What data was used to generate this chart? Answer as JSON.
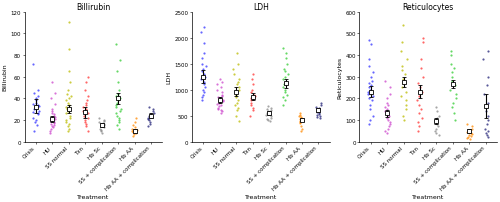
{
  "panels": [
    {
      "title": "Billirubin",
      "ylabel": "Billirubin",
      "xlabel": "Treatment",
      "ylim": [
        0,
        120
      ],
      "yticks": [
        0,
        20,
        40,
        60,
        80,
        100,
        120
      ],
      "groups": [
        {
          "label": "Crisis",
          "color": "#3333ff",
          "mean": 32,
          "err_low": 6,
          "err_high": 7,
          "points": [
            10,
            15,
            18,
            20,
            22,
            25,
            26,
            27,
            28,
            30,
            31,
            32,
            33,
            34,
            35,
            36,
            38,
            40,
            42,
            45,
            48,
            72
          ]
        },
        {
          "label": "HU",
          "color": "#cc44cc",
          "mean": 21,
          "err_low": 3,
          "err_high": 3,
          "points": [
            8,
            10,
            12,
            13,
            14,
            15,
            16,
            17,
            18,
            19,
            20,
            21,
            22,
            23,
            24,
            25,
            26,
            28,
            30,
            35,
            40,
            45,
            55
          ]
        },
        {
          "label": "SS normal",
          "color": "#bbbb00",
          "mean": 30,
          "err_low": 4,
          "err_high": 4,
          "points": [
            10,
            12,
            14,
            16,
            18,
            20,
            22,
            24,
            26,
            28,
            30,
            32,
            34,
            36,
            38,
            40,
            42,
            44,
            48,
            55,
            65,
            85,
            110
          ]
        },
        {
          "label": "Txn",
          "color": "#ff3333",
          "mean": 27,
          "err_low": 5,
          "err_high": 5,
          "points": [
            10,
            14,
            16,
            18,
            20,
            22,
            24,
            26,
            28,
            30,
            32,
            34,
            36,
            38,
            42,
            48,
            55,
            60
          ]
        },
        {
          "label": "Hb Sc",
          "color": "#888888",
          "mean": 15,
          "err_low": 2,
          "err_high": 2,
          "points": [
            8,
            10,
            11,
            12,
            13,
            14,
            15,
            16,
            17,
            18,
            19,
            20,
            22
          ]
        },
        {
          "label": "SS + complication",
          "color": "#33cc33",
          "mean": 40,
          "err_low": 5,
          "err_high": 5,
          "points": [
            12,
            15,
            18,
            20,
            22,
            24,
            26,
            28,
            30,
            32,
            34,
            36,
            38,
            40,
            42,
            44,
            48,
            55,
            65,
            75,
            90
          ]
        },
        {
          "label": "Hb AA",
          "color": "#ff8800",
          "mean": 10,
          "err_low": 2,
          "err_high": 2,
          "points": [
            5,
            7,
            8,
            9,
            10,
            11,
            12,
            13,
            15,
            18,
            22
          ]
        },
        {
          "label": "Hb AA + complication",
          "color": "#222277",
          "mean": 24,
          "err_low": 2,
          "err_high": 2,
          "points": [
            14,
            16,
            18,
            20,
            21,
            22,
            23,
            24,
            25,
            26,
            28,
            30,
            32
          ]
        }
      ]
    },
    {
      "title": "LDH",
      "ylabel": "LDH",
      "xlabel": "Treatment",
      "ylim": [
        0,
        2500
      ],
      "yticks": [
        0,
        500,
        1000,
        1500,
        2000,
        2500
      ],
      "groups": [
        {
          "label": "Crisis",
          "color": "#3333ff",
          "mean": 1250,
          "err_low": 120,
          "err_high": 130,
          "points": [
            800,
            850,
            900,
            950,
            1000,
            1050,
            1100,
            1150,
            1200,
            1250,
            1300,
            1350,
            1400,
            1450,
            1500,
            1600,
            1700,
            1900,
            2100,
            2200
          ]
        },
        {
          "label": "HU",
          "color": "#cc44cc",
          "mean": 800,
          "err_low": 60,
          "err_high": 60,
          "points": [
            550,
            580,
            600,
            620,
            650,
            680,
            700,
            720,
            740,
            760,
            780,
            800,
            820,
            840,
            860,
            880,
            900,
            950,
            1000,
            1050,
            1100,
            1150,
            1200
          ]
        },
        {
          "label": "SS normal",
          "color": "#bbbb00",
          "mean": 960,
          "err_low": 80,
          "err_high": 80,
          "points": [
            400,
            500,
            600,
            650,
            700,
            750,
            800,
            850,
            900,
            950,
            1000,
            1050,
            1100,
            1150,
            1200,
            1300,
            1400,
            1500,
            1700
          ]
        },
        {
          "label": "Txn",
          "color": "#ff3333",
          "mean": 860,
          "err_low": 70,
          "err_high": 70,
          "points": [
            500,
            600,
            650,
            700,
            750,
            800,
            820,
            840,
            860,
            880,
            900,
            950,
            1000,
            1100,
            1200,
            1300
          ]
        },
        {
          "label": "Hb Sc",
          "color": "#888888",
          "mean": 555,
          "err_low": 40,
          "err_high": 40,
          "points": [
            400,
            420,
            440,
            460,
            490,
            510,
            530,
            550,
            570,
            590,
            610,
            630,
            650,
            680
          ]
        },
        {
          "label": "SS + complication",
          "color": "#33cc33",
          "mean": 1120,
          "err_low": 90,
          "err_high": 90,
          "points": [
            700,
            800,
            850,
            900,
            950,
            1000,
            1050,
            1100,
            1150,
            1200,
            1250,
            1300,
            1350,
            1400,
            1500,
            1600,
            1700,
            1800
          ]
        },
        {
          "label": "Hb AA",
          "color": "#ff8800",
          "mean": 420,
          "err_low": 30,
          "err_high": 30,
          "points": [
            200,
            250,
            300,
            350,
            380,
            400,
            420,
            440,
            460,
            480,
            500,
            520,
            550
          ]
        },
        {
          "label": "Hb AA + complication",
          "color": "#222277",
          "mean": 610,
          "err_low": 40,
          "err_high": 40,
          "points": [
            450,
            470,
            490,
            510,
            530,
            550,
            570,
            590,
            610,
            630,
            650,
            670,
            700,
            740
          ]
        }
      ]
    },
    {
      "title": "Reticulocytes",
      "ylabel": "Reticulocytes",
      "xlabel": "Treatment",
      "ylim": [
        0,
        600
      ],
      "yticks": [
        0,
        100,
        200,
        300,
        400,
        500,
        600
      ],
      "groups": [
        {
          "label": "Crisis",
          "color": "#3333ff",
          "mean": 230,
          "err_low": 25,
          "err_high": 25,
          "points": [
            80,
            100,
            120,
            150,
            170,
            190,
            200,
            210,
            220,
            230,
            240,
            250,
            260,
            270,
            280,
            300,
            320,
            350,
            380,
            450,
            470
          ]
        },
        {
          "label": "HU",
          "color": "#cc44cc",
          "mean": 130,
          "err_low": 15,
          "err_high": 15,
          "points": [
            40,
            50,
            60,
            70,
            80,
            90,
            100,
            110,
            120,
            130,
            140,
            150,
            160,
            170,
            180,
            200,
            220,
            250,
            280
          ]
        },
        {
          "label": "SS normal",
          "color": "#bbbb00",
          "mean": 275,
          "err_low": 22,
          "err_high": 25,
          "points": [
            100,
            120,
            150,
            170,
            190,
            210,
            230,
            250,
            270,
            290,
            310,
            330,
            350,
            380,
            420,
            460,
            540
          ]
        },
        {
          "label": "Txn",
          "color": "#ff3333",
          "mean": 230,
          "err_low": 30,
          "err_high": 30,
          "points": [
            50,
            70,
            90,
            110,
            130,
            150,
            170,
            190,
            210,
            230,
            250,
            270,
            300,
            340,
            380,
            460,
            480
          ]
        },
        {
          "label": "Hb Sc",
          "color": "#888888",
          "mean": 95,
          "err_low": 15,
          "err_high": 15,
          "points": [
            30,
            40,
            50,
            60,
            70,
            80,
            90,
            100,
            110,
            120,
            140,
            160
          ]
        },
        {
          "label": "SS + complication",
          "color": "#33cc33",
          "mean": 265,
          "err_low": 20,
          "err_high": 20,
          "points": [
            100,
            130,
            160,
            180,
            200,
            220,
            240,
            260,
            280,
            300,
            320,
            340,
            360,
            400,
            420
          ]
        },
        {
          "label": "Hb AA",
          "color": "#ff8800",
          "mean": 48,
          "err_low": 8,
          "err_high": 8,
          "points": [
            10,
            15,
            20,
            25,
            30,
            35,
            40,
            45,
            50,
            55,
            60,
            70,
            80
          ]
        },
        {
          "label": "Hb AA + complication",
          "color": "#222277",
          "mean": 165,
          "err_low": 55,
          "err_high": 55,
          "points": [
            20,
            30,
            40,
            50,
            60,
            80,
            100,
            120,
            140,
            160,
            180,
            220,
            260,
            300,
            380,
            420
          ]
        }
      ]
    }
  ],
  "fig_width": 5.0,
  "fig_height": 2.03,
  "dpi": 100,
  "scatter_size": 2.5,
  "scatter_alpha": 0.75,
  "error_color": "black",
  "error_linewidth": 0.8,
  "capsize": 1.5,
  "tick_fontsize": 4.0,
  "label_fontsize": 4.5,
  "title_fontsize": 5.5
}
